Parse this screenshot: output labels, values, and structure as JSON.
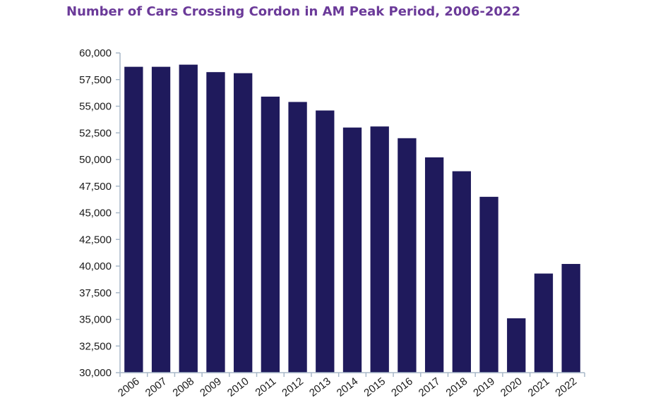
{
  "chart_data": {
    "type": "bar",
    "title": "Number of Cars Crossing Cordon in AM Peak Period, 2006-2022",
    "xlabel": "",
    "ylabel": "",
    "categories": [
      "2006",
      "2007",
      "2008",
      "2009",
      "2010",
      "2011",
      "2012",
      "2013",
      "2014",
      "2015",
      "2016",
      "2017",
      "2018",
      "2019",
      "2020",
      "2021",
      "2022"
    ],
    "values": [
      58700,
      58700,
      58900,
      58200,
      58100,
      55900,
      55400,
      54600,
      53000,
      53100,
      52000,
      50200,
      48900,
      46500,
      35100,
      39300,
      40200
    ],
    "ylim": [
      30000,
      60000
    ],
    "yticks": [
      30000,
      32500,
      35000,
      37500,
      40000,
      42500,
      45000,
      47500,
      50000,
      52500,
      55000,
      57500,
      60000
    ],
    "ytick_labels": [
      "30,000",
      "32,500",
      "35,000",
      "37,500",
      "40,000",
      "42,500",
      "45,000",
      "47,500",
      "50,000",
      "52,500",
      "55,000",
      "57,500",
      "60,000"
    ],
    "grid": false,
    "legend": "none",
    "colors": {
      "bar": "#1f1a5c",
      "axis": "#a9b9c9",
      "title": "#6b3a99"
    }
  }
}
